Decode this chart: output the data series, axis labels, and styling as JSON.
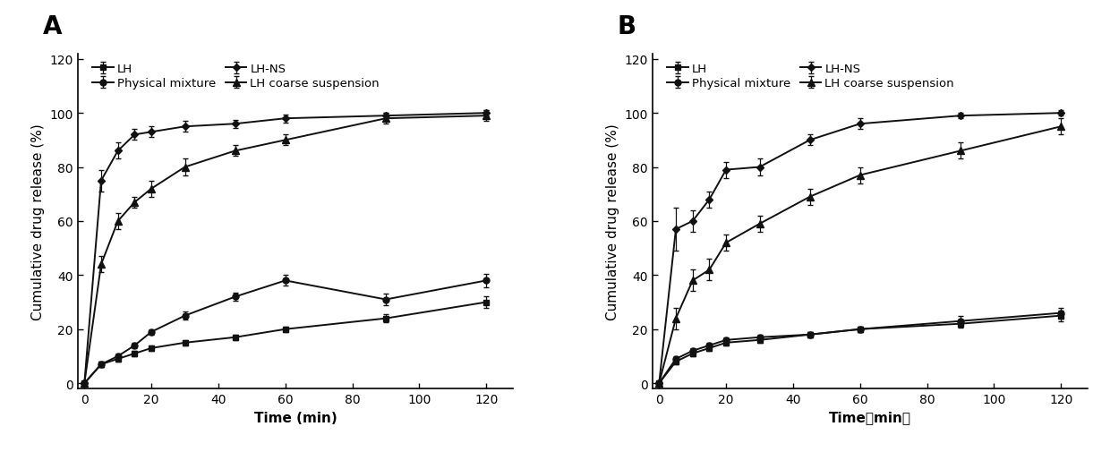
{
  "panel_A": {
    "title": "A",
    "xlabel": "Time (min)",
    "ylabel": "Cumulative drug release (%)",
    "xlim": [
      -2,
      128
    ],
    "ylim": [
      -2,
      122
    ],
    "xticks": [
      0,
      20,
      40,
      60,
      80,
      100,
      120
    ],
    "yticks": [
      0,
      20,
      40,
      60,
      80,
      100,
      120
    ],
    "series": {
      "LH": {
        "x": [
          0,
          5,
          10,
          15,
          20,
          30,
          45,
          60,
          90,
          120
        ],
        "y": [
          0,
          7,
          9,
          11,
          13,
          15,
          17,
          20,
          24,
          30
        ],
        "yerr": [
          0,
          1.0,
          1.0,
          1.0,
          1.0,
          1.0,
          1.0,
          1.0,
          1.5,
          2.0
        ],
        "marker": "s",
        "label": "LH"
      },
      "LH-NS": {
        "x": [
          0,
          5,
          10,
          15,
          20,
          30,
          45,
          60,
          90,
          120
        ],
        "y": [
          0,
          75,
          86,
          92,
          93,
          95,
          96,
          98,
          99,
          100
        ],
        "yerr": [
          0,
          4.0,
          3.0,
          2.0,
          2.0,
          2.0,
          1.5,
          1.5,
          1.0,
          1.0
        ],
        "marker": "D",
        "label": "LH-NS"
      },
      "Physical mixture": {
        "x": [
          0,
          5,
          10,
          15,
          20,
          30,
          45,
          60,
          90,
          120
        ],
        "y": [
          0,
          7,
          10,
          14,
          19,
          25,
          32,
          38,
          31,
          38
        ],
        "yerr": [
          0,
          1.0,
          1.0,
          1.0,
          1.0,
          1.5,
          1.5,
          2.0,
          2.0,
          2.5
        ],
        "marker": "o",
        "label": "Physical mixture"
      },
      "LH coarse suspension": {
        "x": [
          0,
          5,
          10,
          15,
          20,
          30,
          45,
          60,
          90,
          120
        ],
        "y": [
          0,
          44,
          60,
          67,
          72,
          80,
          86,
          90,
          98,
          99
        ],
        "yerr": [
          0,
          3.0,
          3.0,
          2.0,
          3.0,
          3.0,
          2.0,
          2.0,
          2.0,
          2.0
        ],
        "marker": "^",
        "label": "LH coarse suspension"
      }
    }
  },
  "panel_B": {
    "title": "B",
    "xlabel": "Time（min）",
    "ylabel": "Cumulative drug release (%)",
    "xlim": [
      -2,
      128
    ],
    "ylim": [
      -2,
      122
    ],
    "xticks": [
      0,
      20,
      40,
      60,
      80,
      100,
      120
    ],
    "yticks": [
      0,
      20,
      40,
      60,
      80,
      100,
      120
    ],
    "series": {
      "LH": {
        "x": [
          0,
          5,
          10,
          15,
          20,
          30,
          45,
          60,
          90,
          120
        ],
        "y": [
          0,
          8,
          11,
          13,
          15,
          16,
          18,
          20,
          22,
          25
        ],
        "yerr": [
          0,
          1.0,
          1.0,
          1.0,
          1.0,
          1.0,
          1.0,
          1.0,
          1.5,
          2.0
        ],
        "marker": "s",
        "label": "LH"
      },
      "LH-NS": {
        "x": [
          0,
          5,
          10,
          15,
          20,
          30,
          45,
          60,
          90,
          120
        ],
        "y": [
          0,
          57,
          60,
          68,
          79,
          80,
          90,
          96,
          99,
          100
        ],
        "yerr": [
          0,
          8.0,
          4.0,
          3.0,
          3.0,
          3.0,
          2.0,
          2.0,
          1.0,
          1.0
        ],
        "marker": "D",
        "label": "LH-NS"
      },
      "Physical mixture": {
        "x": [
          0,
          5,
          10,
          15,
          20,
          30,
          45,
          60,
          90,
          120
        ],
        "y": [
          0,
          9,
          12,
          14,
          16,
          17,
          18,
          20,
          23,
          26
        ],
        "yerr": [
          0,
          1.0,
          1.0,
          1.0,
          1.0,
          1.0,
          1.0,
          1.0,
          2.0,
          2.0
        ],
        "marker": "o",
        "label": "Physical mixture"
      },
      "LH coarse suspension": {
        "x": [
          0,
          5,
          10,
          15,
          20,
          30,
          45,
          60,
          90,
          120
        ],
        "y": [
          0,
          24,
          38,
          42,
          52,
          59,
          69,
          77,
          86,
          95
        ],
        "yerr": [
          0,
          4.0,
          4.0,
          4.0,
          3.0,
          3.0,
          3.0,
          3.0,
          3.0,
          3.0
        ],
        "marker": "^",
        "label": "LH coarse suspension"
      }
    }
  },
  "line_color": "#111111",
  "legend_order": [
    "LH",
    "LH-NS",
    "Physical mixture",
    "LH coarse suspension"
  ],
  "title_fontsize": 20,
  "label_fontsize": 11,
  "tick_fontsize": 10,
  "legend_fontsize": 9.5
}
